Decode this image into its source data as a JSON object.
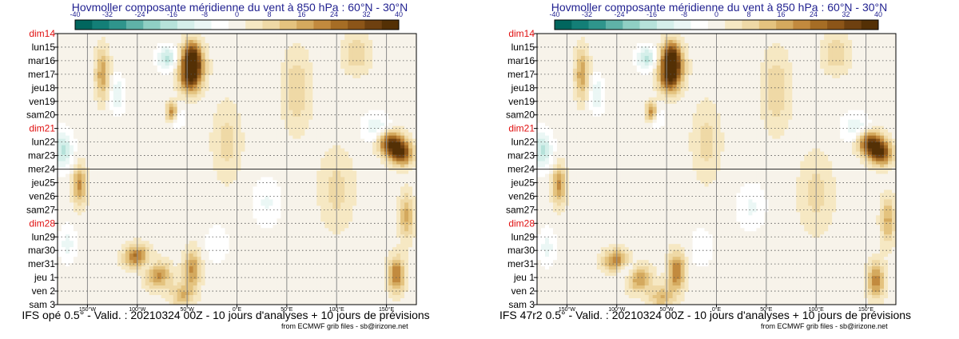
{
  "chart_data": [
    {
      "type": "heatmap",
      "title": "Hovmoller composante méridienne du vent à 850 hPa : 60°N - 30°N",
      "subtitle": "IFS opé 0.5° - Valid. : 20210324 00Z - 10 jours d'analyses + 10 jours de prévisions",
      "credit": "from ECMWF grib files - sb@irizone.net",
      "colorbar_ticks": [
        "-40",
        "-32",
        "-24",
        "-16",
        "-8",
        "0",
        "8",
        "16",
        "24",
        "32",
        "40"
      ],
      "colorbar_colors": [
        "#01665e",
        "#137f77",
        "#2f958c",
        "#5fb2a8",
        "#8fcfc4",
        "#b6e2da",
        "#d5efea",
        "#ebf7f5",
        "#ffffff",
        "#f7f3ea",
        "#f6e8c3",
        "#efd9a6",
        "#e4c37f",
        "#d4a95e",
        "#c28a3e",
        "#a66d25",
        "#8c5518",
        "#6e4010",
        "#543005"
      ],
      "x_ticks": [
        "150°W",
        "100°W",
        "50°W",
        "0°E",
        "50°E",
        "100°E",
        "150°E"
      ],
      "x_tick_values": [
        -150,
        -100,
        -50,
        0,
        50,
        100,
        150
      ],
      "xlim": [
        -180,
        180
      ],
      "y_labels": [
        "dim14",
        "lun15",
        "mar16",
        "mer17",
        "jeu18",
        "ven19",
        "sam20",
        "dim21",
        "lun22",
        "mar23",
        "mer24",
        "jeu25",
        "ven26",
        "sam27",
        "dim28",
        "lun29",
        "mar30",
        "mer31",
        "jeu 1",
        "ven 2",
        "sam 3"
      ],
      "sunday_labels": [
        "dim14",
        "dim21",
        "dim28"
      ],
      "analysis_end_label": "mer24",
      "features": [
        {
          "lon": -45,
          "day": 2.5,
          "value": 38,
          "sx": 8,
          "sy": 1.0
        },
        {
          "lon": -45,
          "day": 1.5,
          "value": 18,
          "sx": 6,
          "sy": 0.8
        },
        {
          "lon": -48,
          "day": 3.5,
          "value": 14,
          "sx": 7,
          "sy": 0.8
        },
        {
          "lon": -70,
          "day": 1.8,
          "value": -16,
          "sx": 7,
          "sy": 0.6
        },
        {
          "lon": -65,
          "day": 5.8,
          "value": 25,
          "sx": 4,
          "sy": 0.5
        },
        {
          "lon": -60,
          "day": 6.2,
          "value": -9,
          "sx": 5,
          "sy": 0.6
        },
        {
          "lon": 155,
          "day": 8.1,
          "value": 36,
          "sx": 9,
          "sy": 0.6
        },
        {
          "lon": 165,
          "day": 8.9,
          "value": 30,
          "sx": 8,
          "sy": 0.6
        },
        {
          "lon": 140,
          "day": 7.0,
          "value": -10,
          "sx": 10,
          "sy": 0.8
        },
        {
          "lon": -175,
          "day": 8.6,
          "value": -16,
          "sx": 7,
          "sy": 1.0
        },
        {
          "lon": -135,
          "day": 3.0,
          "value": 18,
          "sx": 5,
          "sy": 1.3
        },
        {
          "lon": -120,
          "day": 4.5,
          "value": -10,
          "sx": 5,
          "sy": 1.0
        },
        {
          "lon": -158,
          "day": 11.2,
          "value": 20,
          "sx": 5,
          "sy": 1.0
        },
        {
          "lon": -100,
          "day": 16.5,
          "value": 26,
          "sx": 9,
          "sy": 0.6
        },
        {
          "lon": -80,
          "day": 17.8,
          "value": 22,
          "sx": 9,
          "sy": 0.7
        },
        {
          "lon": -90,
          "day": 17.1,
          "value": -10,
          "sx": 8,
          "sy": 0.6
        },
        {
          "lon": -45,
          "day": 17.4,
          "value": 20,
          "sx": 6,
          "sy": 1.0
        },
        {
          "lon": -55,
          "day": 19.3,
          "value": 15,
          "sx": 8,
          "sy": 0.6
        },
        {
          "lon": 160,
          "day": 17.8,
          "value": 24,
          "sx": 6,
          "sy": 0.9
        },
        {
          "lon": 170,
          "day": 13.5,
          "value": 16,
          "sx": 5,
          "sy": 1.2
        },
        {
          "lon": -170,
          "day": 15.5,
          "value": -8,
          "sx": 6,
          "sy": 1.0
        },
        {
          "lon": 60,
          "day": 4.2,
          "value": 10,
          "sx": 10,
          "sy": 2.0
        },
        {
          "lon": 30,
          "day": 12.5,
          "value": -7,
          "sx": 10,
          "sy": 1.2
        },
        {
          "lon": 100,
          "day": 11.5,
          "value": 8,
          "sx": 12,
          "sy": 2.0
        },
        {
          "lon": -10,
          "day": 8.0,
          "value": 8,
          "sx": 10,
          "sy": 2.0
        },
        {
          "lon": 120,
          "day": 1.5,
          "value": 10,
          "sx": 10,
          "sy": 1.0
        },
        {
          "lon": -20,
          "day": 15.5,
          "value": -6,
          "sx": 8,
          "sy": 1.0
        }
      ]
    },
    {
      "type": "heatmap",
      "title": "Hovmoller composante méridienne du vent à 850 hPa : 60°N - 30°N",
      "subtitle": "IFS 47r2 0.5° - Valid. : 20210324 00Z - 10 jours d'analyses + 10 jours de prévisions",
      "credit": "from ECMWF grib files - sb@irizone.net",
      "colorbar_ticks": [
        "-40",
        "-32",
        "-24",
        "-16",
        "-8",
        "0",
        "8",
        "16",
        "24",
        "32",
        "40"
      ],
      "colorbar_colors": [
        "#01665e",
        "#137f77",
        "#2f958c",
        "#5fb2a8",
        "#8fcfc4",
        "#b6e2da",
        "#d5efea",
        "#ebf7f5",
        "#ffffff",
        "#f7f3ea",
        "#f6e8c3",
        "#efd9a6",
        "#e4c37f",
        "#d4a95e",
        "#c28a3e",
        "#a66d25",
        "#8c5518",
        "#6e4010",
        "#543005"
      ],
      "x_ticks": [
        "150°W",
        "100°W",
        "50°W",
        "0°E",
        "50°E",
        "100°E",
        "150°E"
      ],
      "x_tick_values": [
        -150,
        -100,
        -50,
        0,
        50,
        100,
        150
      ],
      "xlim": [
        -180,
        180
      ],
      "y_labels": [
        "dim14",
        "lun15",
        "mar16",
        "mer17",
        "jeu18",
        "ven19",
        "sam20",
        "dim21",
        "lun22",
        "mar23",
        "mer24",
        "jeu25",
        "ven26",
        "sam27",
        "dim28",
        "lun29",
        "mar30",
        "mer31",
        "jeu 1",
        "ven 2",
        "sam 3"
      ],
      "sunday_labels": [
        "dim14",
        "dim21",
        "dim28"
      ],
      "analysis_end_label": "mer24",
      "features": [
        {
          "lon": -45,
          "day": 2.5,
          "value": 38,
          "sx": 8,
          "sy": 1.0
        },
        {
          "lon": -45,
          "day": 1.5,
          "value": 18,
          "sx": 6,
          "sy": 0.8
        },
        {
          "lon": -48,
          "day": 3.5,
          "value": 14,
          "sx": 7,
          "sy": 0.8
        },
        {
          "lon": -70,
          "day": 1.8,
          "value": -16,
          "sx": 7,
          "sy": 0.6
        },
        {
          "lon": -65,
          "day": 5.8,
          "value": 25,
          "sx": 4,
          "sy": 0.5
        },
        {
          "lon": -60,
          "day": 6.2,
          "value": -9,
          "sx": 5,
          "sy": 0.6
        },
        {
          "lon": 155,
          "day": 8.1,
          "value": 36,
          "sx": 9,
          "sy": 0.6
        },
        {
          "lon": 165,
          "day": 8.9,
          "value": 30,
          "sx": 8,
          "sy": 0.6
        },
        {
          "lon": 140,
          "day": 7.0,
          "value": -10,
          "sx": 10,
          "sy": 0.8
        },
        {
          "lon": -175,
          "day": 8.6,
          "value": -16,
          "sx": 7,
          "sy": 1.0
        },
        {
          "lon": -135,
          "day": 3.0,
          "value": 18,
          "sx": 5,
          "sy": 1.3
        },
        {
          "lon": -120,
          "day": 4.5,
          "value": -10,
          "sx": 5,
          "sy": 1.0
        },
        {
          "lon": -158,
          "day": 11.2,
          "value": 20,
          "sx": 5,
          "sy": 1.0
        },
        {
          "lon": -100,
          "day": 16.8,
          "value": 24,
          "sx": 9,
          "sy": 0.6
        },
        {
          "lon": -78,
          "day": 18.1,
          "value": 20,
          "sx": 9,
          "sy": 0.7
        },
        {
          "lon": -90,
          "day": 17.4,
          "value": -12,
          "sx": 8,
          "sy": 0.6
        },
        {
          "lon": -40,
          "day": 17.6,
          "value": 24,
          "sx": 6,
          "sy": 1.0
        },
        {
          "lon": -55,
          "day": 19.5,
          "value": 15,
          "sx": 8,
          "sy": 0.6
        },
        {
          "lon": 160,
          "day": 18.2,
          "value": 22,
          "sx": 6,
          "sy": 0.9
        },
        {
          "lon": 172,
          "day": 13.8,
          "value": 16,
          "sx": 5,
          "sy": 1.2
        },
        {
          "lon": -170,
          "day": 15.8,
          "value": -8,
          "sx": 6,
          "sy": 1.0
        },
        {
          "lon": 60,
          "day": 4.2,
          "value": 10,
          "sx": 10,
          "sy": 2.0
        },
        {
          "lon": 35,
          "day": 12.8,
          "value": -7,
          "sx": 10,
          "sy": 1.2
        },
        {
          "lon": 100,
          "day": 11.8,
          "value": 8,
          "sx": 12,
          "sy": 2.0
        },
        {
          "lon": -10,
          "day": 8.0,
          "value": 8,
          "sx": 10,
          "sy": 2.0
        },
        {
          "lon": 120,
          "day": 1.5,
          "value": 10,
          "sx": 10,
          "sy": 1.0
        },
        {
          "lon": -15,
          "day": 15.8,
          "value": -6,
          "sx": 8,
          "sy": 1.0
        }
      ]
    }
  ]
}
